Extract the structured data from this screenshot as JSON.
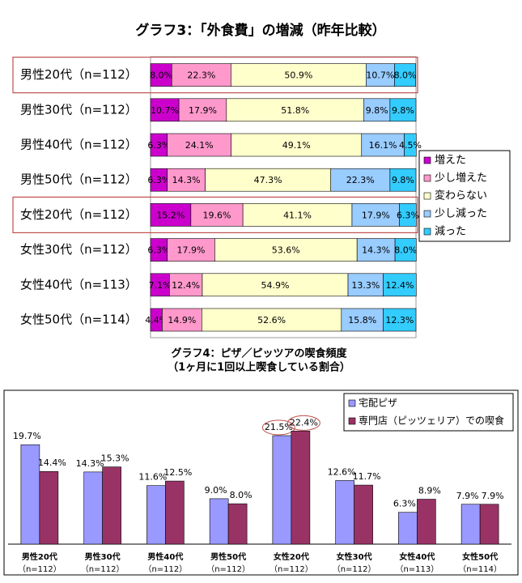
{
  "chart_data": [
    {
      "type": "bar",
      "horizontal": true,
      "stacked": true,
      "title": "グラフ3：「外食費」の増減（昨年比較）",
      "categories": [
        "男性20代（n=112）",
        "男性30代（n=112）",
        "男性40代（n=112）",
        "男性50代（n=112）",
        "女性20代（n=112）",
        "女性30代（n=112）",
        "女性40代（n=113）",
        "女性50代（n=114）"
      ],
      "highlight": [
        0,
        4
      ],
      "xlim": [
        0,
        100
      ],
      "legend": "right",
      "series": [
        {
          "name": "増えた",
          "color": "#cc00cc",
          "values": [
            8.0,
            10.7,
            6.3,
            6.3,
            15.2,
            6.3,
            7.1,
            4.4
          ],
          "value_labels": [
            "8.0%",
            "10.7%",
            "6.3%",
            "6.3%",
            "15.2%",
            "6.3%",
            "7.1%",
            "4.4%"
          ]
        },
        {
          "name": "少し増えた",
          "color": "#ff99cc",
          "values": [
            22.3,
            17.9,
            24.1,
            14.3,
            19.6,
            17.9,
            12.4,
            14.9
          ],
          "value_labels": [
            "22.3%",
            "17.9%",
            "24.1%",
            "14.3%",
            "19.6%",
            "17.9%",
            "12.4%",
            "14.9%"
          ]
        },
        {
          "name": "変わらない",
          "color": "#ffffcc",
          "values": [
            50.9,
            51.8,
            49.1,
            47.3,
            41.1,
            53.6,
            54.9,
            52.6
          ],
          "value_labels": [
            "50.9%",
            "51.8%",
            "49.1%",
            "47.3%",
            "41.1%",
            "53.6%",
            "54.9%",
            "52.6%"
          ]
        },
        {
          "name": "少し減った",
          "color": "#99ccff",
          "values": [
            10.7,
            9.8,
            16.1,
            22.3,
            17.9,
            14.3,
            13.3,
            15.8
          ],
          "value_labels": [
            "10.7%",
            "9.8%",
            "16.1%",
            "22.3%",
            "17.9%",
            "14.3%",
            "13.3%",
            "15.8%"
          ]
        },
        {
          "name": "減った",
          "color": "#33ccff",
          "values": [
            8.0,
            9.8,
            4.5,
            9.8,
            6.3,
            8.0,
            12.4,
            12.3
          ],
          "value_labels": [
            "8.0%",
            "9.8%",
            "4.5%",
            "9.8%",
            "6.3%",
            "8.0%",
            "12.4%",
            "12.3%"
          ]
        }
      ]
    },
    {
      "type": "bar",
      "title": [
        "グラフ4：ピザ／ピッツアの喫食頻度",
        "（1ヶ月に1回以上喫食している割合）"
      ],
      "categories": [
        [
          "男性20代",
          "（n=112）"
        ],
        [
          "男性30代",
          "（n=112）"
        ],
        [
          "男性40代",
          "（n=112）"
        ],
        [
          "男性50代",
          "（n=112）"
        ],
        [
          "女性20代",
          "（n=112）"
        ],
        [
          "女性30代",
          "（n=112）"
        ],
        [
          "女性40代",
          "（n=113）"
        ],
        [
          "女性50代",
          "（n=114）"
        ]
      ],
      "circled": 4,
      "ylim": [
        0,
        30
      ],
      "legend": "upper right",
      "series": [
        {
          "name": "宅配ピザ",
          "color": "#9999ff",
          "values": [
            19.7,
            14.3,
            11.6,
            9.0,
            21.5,
            12.6,
            6.3,
            7.9
          ],
          "value_labels": [
            "19.7%",
            "14.3%",
            "11.6%",
            "9.0%",
            "21.5%",
            "12.6%",
            "6.3%",
            "7.9%"
          ]
        },
        {
          "name": "専門店（ピッツェリア）での喫食",
          "color": "#993366",
          "values": [
            14.4,
            15.3,
            12.5,
            8.0,
            22.4,
            11.7,
            8.9,
            7.9
          ],
          "value_labels": [
            "14.4%",
            "15.3%",
            "12.5%",
            "8.0%",
            "22.4%",
            "11.7%",
            "8.9%",
            "7.9%"
          ]
        }
      ]
    }
  ]
}
